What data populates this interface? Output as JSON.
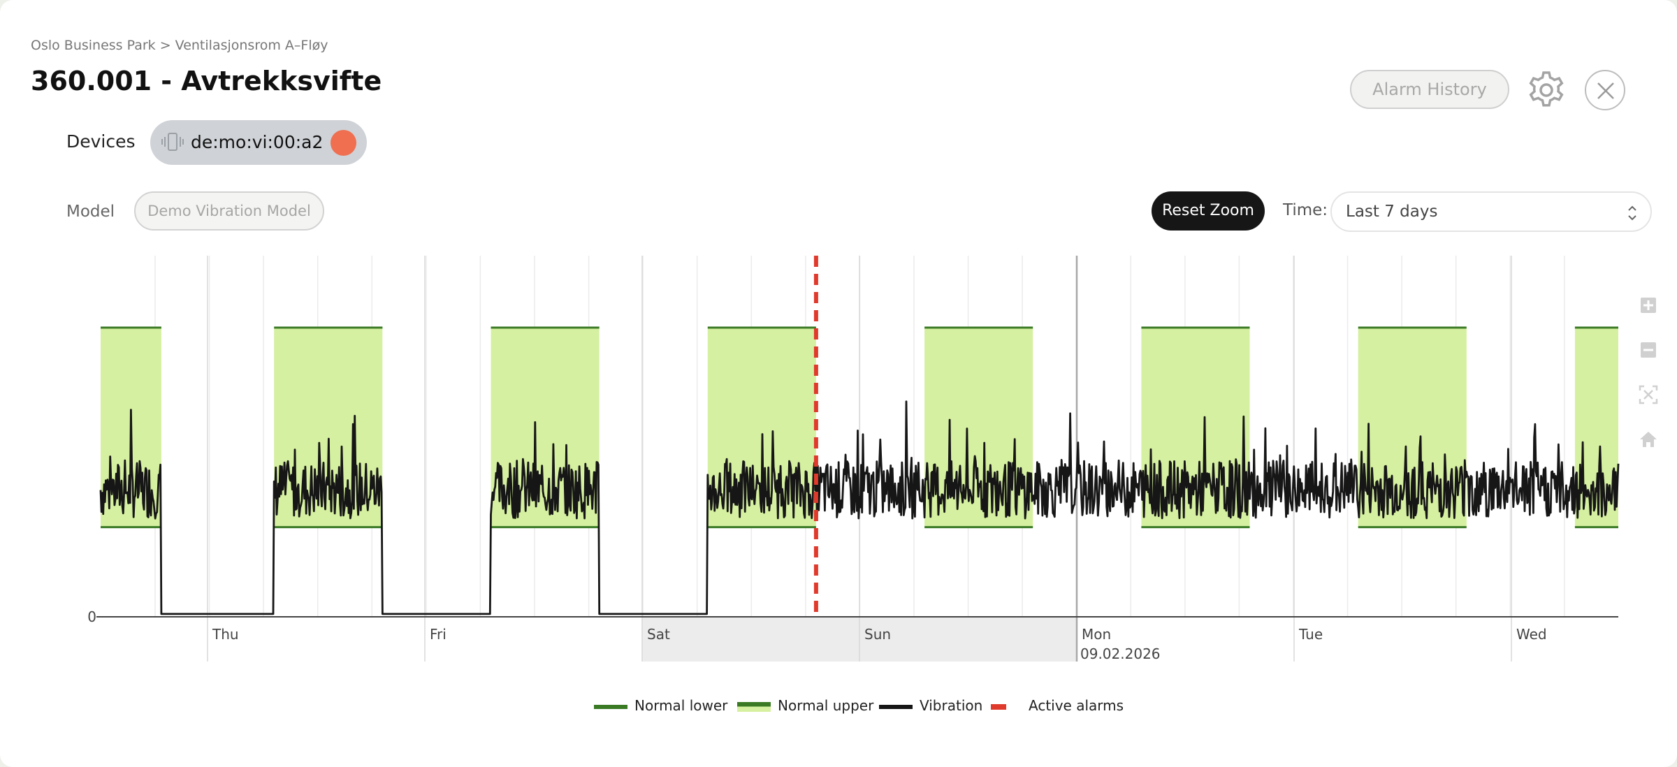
{
  "breadcrumb": "Oslo Business Park > Ventilasjonsrom A–Fløy",
  "title": "360.001 - Avtrekksvifte",
  "header": {
    "alarm_history_label": "Alarm History"
  },
  "devices": {
    "label": "Devices",
    "chip_text": "de:mo:vi:00:a2",
    "status_color": "#ef6f50"
  },
  "model": {
    "label": "Model",
    "value": "Demo Vibration Model"
  },
  "controls": {
    "reset_zoom_label": "Reset Zoom",
    "time_label": "Time:",
    "time_value": "Last 7 days"
  },
  "modebar": [
    "zoom-in-icon",
    "zoom-out-icon",
    "autoscale-icon",
    "home-icon"
  ],
  "colors": {
    "band_fill": "#d5f0a0",
    "band_edge": "#3a7a25",
    "vibration": "#161616",
    "alarm": "#e03a2c",
    "weekend_shade": "#ececec"
  },
  "chart_data": {
    "type": "line",
    "x_ticks": [
      "Thu",
      "Fri",
      "Sat",
      "Sun",
      "Mon",
      "Tue",
      "Wed"
    ],
    "x_tick_sublabel": "09.02.2026",
    "y_ticks": [
      "0"
    ],
    "x_range_days": [
      0,
      7
    ],
    "normal_bands": [
      {
        "start": 0.0,
        "end": 0.28,
        "lower": 0.31,
        "upper": 1.0
      },
      {
        "start": 0.8,
        "end": 1.3,
        "lower": 0.31,
        "upper": 1.0
      },
      {
        "start": 1.8,
        "end": 2.3,
        "lower": 0.31,
        "upper": 1.0
      },
      {
        "start": 2.8,
        "end": 3.3,
        "lower": 0.31,
        "upper": 1.0
      },
      {
        "start": 3.8,
        "end": 4.3,
        "lower": 0.31,
        "upper": 1.0
      },
      {
        "start": 4.8,
        "end": 5.3,
        "lower": 0.31,
        "upper": 1.0
      },
      {
        "start": 5.8,
        "end": 6.3,
        "lower": 0.31,
        "upper": 1.0
      },
      {
        "start": 6.8,
        "end": 7.0,
        "lower": 0.31,
        "upper": 1.0
      }
    ],
    "low_periods": [
      [
        0.28,
        0.8
      ],
      [
        1.3,
        1.8
      ],
      [
        2.3,
        2.8
      ]
    ],
    "vibration_typical": 0.43,
    "vibration_noise": 0.1,
    "alarm_marker_x": 3.3,
    "legend": [
      "Normal lower",
      "Normal upper",
      "Vibration",
      "Active alarms"
    ]
  }
}
